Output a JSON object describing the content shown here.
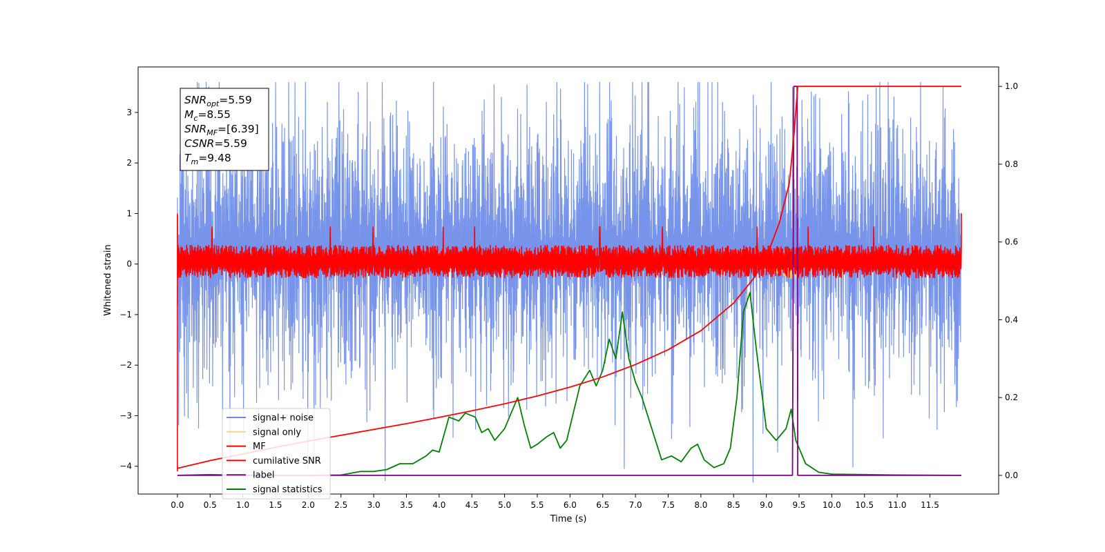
{
  "chart_data": {
    "type": "line",
    "title": "",
    "xlabel": "Time (s)",
    "ylabel": "Whitened strain",
    "xlim": [
      -0.6,
      12.55
    ],
    "ylim": [
      -4.55,
      3.9
    ],
    "y2lim": [
      -0.048,
      1.05
    ],
    "xticks": [
      0.0,
      0.5,
      1.0,
      1.5,
      2.0,
      2.5,
      3.0,
      3.5,
      4.0,
      4.5,
      5.0,
      5.5,
      6.0,
      6.5,
      7.0,
      7.5,
      8.0,
      8.5,
      9.0,
      9.5,
      10.0,
      10.5,
      11.0,
      11.5
    ],
    "xtick_labels": [
      "0.0",
      "0.5",
      "1.0",
      "1.5",
      "2.0",
      "2.5",
      "3.0",
      "3.5",
      "4.0",
      "4.5",
      "5.0",
      "5.5",
      "6.0",
      "6.5",
      "7.0",
      "7.5",
      "8.0",
      "8.5",
      "9.0",
      "9.5",
      "10.0",
      "10.5",
      "11.0",
      "11.5"
    ],
    "yticks": [
      -4,
      -3,
      -2,
      -1,
      0,
      1,
      2,
      3
    ],
    "ytick_labels": [
      "−4",
      "−3",
      "−2",
      "−1",
      "0",
      "1",
      "2",
      "3"
    ],
    "y2ticks": [
      0.0,
      0.2,
      0.4,
      0.6,
      0.8,
      1.0
    ],
    "y2tick_labels": [
      "0.0",
      "0.2",
      "0.4",
      "0.6",
      "0.8",
      "1.0"
    ],
    "grid": false,
    "legend_position": "lower-left",
    "series": [
      {
        "name": "signal+ noise",
        "axis": "left",
        "color": "#6b8be8",
        "kind": "noise",
        "t_range": [
          0.0,
          11.98
        ],
        "typical_range": [
          -2.3,
          3.0
        ],
        "extremes": [
          {
            "x": 6.83,
            "y": -4.05
          },
          {
            "x": 11.7,
            "y": 3.5
          },
          {
            "x": 8.8,
            "y": 3.35
          },
          {
            "x": 0.3,
            "y": -2.75
          }
        ]
      },
      {
        "name": "signal only",
        "axis": "left",
        "color": "#f5c96a",
        "kind": "chirp",
        "t_range": [
          8.5,
          9.48
        ],
        "peak_amplitude": 0.35
      },
      {
        "name": "MF",
        "axis": "left",
        "color": "#ff0000",
        "kind": "noise",
        "t_range": [
          0.0,
          11.98
        ],
        "typical_range": [
          -0.25,
          0.35
        ],
        "edge_values": [
          {
            "x": 0.0,
            "y": 1.0
          },
          {
            "x": 0.0,
            "y": -4.1
          },
          {
            "x": 11.98,
            "y": 1.0
          }
        ]
      },
      {
        "name": "cumilative SNR",
        "axis": "right",
        "color": "#ff0000",
        "x": [
          0.0,
          0.5,
          1.0,
          1.5,
          2.0,
          2.5,
          3.0,
          3.5,
          4.0,
          4.5,
          5.0,
          5.5,
          6.0,
          6.5,
          7.0,
          7.5,
          8.0,
          8.5,
          8.8,
          9.0,
          9.2,
          9.35,
          9.42,
          9.48,
          9.5,
          10.0,
          11.0,
          11.98
        ],
        "values": [
          0.018,
          0.038,
          0.055,
          0.072,
          0.088,
          0.103,
          0.118,
          0.133,
          0.149,
          0.166,
          0.184,
          0.204,
          0.227,
          0.253,
          0.285,
          0.323,
          0.372,
          0.443,
          0.505,
          0.56,
          0.65,
          0.75,
          0.87,
          1.0,
          1.0,
          1.0,
          1.0,
          1.0
        ]
      },
      {
        "name": "label",
        "axis": "right",
        "color": "#800080",
        "x": [
          0.0,
          9.4,
          9.42,
          9.47,
          9.48,
          11.98
        ],
        "values": [
          0.0,
          0.0,
          1.0,
          1.0,
          0.0,
          0.0
        ]
      },
      {
        "name": "signal statistics",
        "axis": "right",
        "color": "#008000",
        "x": [
          0.0,
          0.5,
          1.0,
          1.5,
          2.0,
          2.5,
          2.8,
          3.0,
          3.2,
          3.4,
          3.6,
          3.8,
          3.9,
          4.0,
          4.15,
          4.3,
          4.4,
          4.55,
          4.65,
          4.75,
          4.85,
          5.0,
          5.1,
          5.2,
          5.3,
          5.4,
          5.5,
          5.65,
          5.75,
          5.85,
          5.95,
          6.05,
          6.15,
          6.3,
          6.4,
          6.5,
          6.6,
          6.7,
          6.8,
          6.9,
          7.0,
          7.1,
          7.25,
          7.4,
          7.55,
          7.7,
          7.85,
          7.95,
          8.05,
          8.2,
          8.35,
          8.45,
          8.55,
          8.65,
          8.75,
          8.85,
          9.0,
          9.15,
          9.3,
          9.38,
          9.45,
          9.6,
          9.8,
          10.0,
          11.0,
          11.98
        ],
        "values": [
          0.0,
          0.002,
          0.0,
          0.0,
          0.0,
          0.001,
          0.01,
          0.01,
          0.015,
          0.03,
          0.03,
          0.05,
          0.065,
          0.06,
          0.15,
          0.14,
          0.16,
          0.15,
          0.11,
          0.12,
          0.09,
          0.12,
          0.16,
          0.2,
          0.13,
          0.07,
          0.08,
          0.1,
          0.11,
          0.07,
          0.09,
          0.16,
          0.23,
          0.27,
          0.23,
          0.27,
          0.35,
          0.3,
          0.42,
          0.3,
          0.24,
          0.2,
          0.12,
          0.04,
          0.05,
          0.035,
          0.07,
          0.08,
          0.04,
          0.02,
          0.03,
          0.07,
          0.2,
          0.42,
          0.47,
          0.32,
          0.12,
          0.09,
          0.12,
          0.17,
          0.09,
          0.03,
          0.008,
          0.003,
          0.001,
          0.0
        ]
      }
    ],
    "annotation_box": [
      {
        "symbol": "SNR",
        "subscript": "opt",
        "value": "=5.59"
      },
      {
        "symbol": "M",
        "subscript": "c",
        "value": "=8.55"
      },
      {
        "symbol": "SNR",
        "subscript": "MF",
        "value": "=[6.39]"
      },
      {
        "symbol": "CSNR",
        "subscript": "",
        "value": "=5.59"
      },
      {
        "symbol": "T",
        "subscript": "m",
        "value": "=9.48"
      }
    ]
  }
}
